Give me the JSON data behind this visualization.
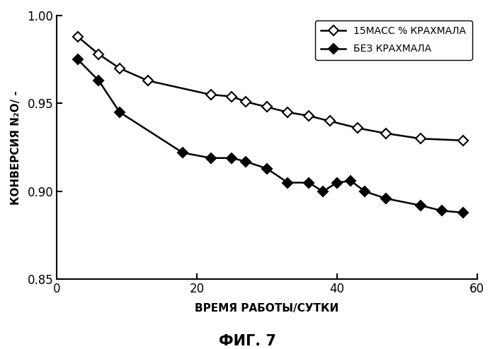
{
  "series1_x": [
    3,
    6,
    9,
    13,
    22,
    25,
    27,
    30,
    33,
    36,
    39,
    43,
    47,
    52,
    58
  ],
  "series1_y": [
    0.988,
    0.978,
    0.97,
    0.963,
    0.955,
    0.954,
    0.951,
    0.948,
    0.945,
    0.943,
    0.94,
    0.936,
    0.933,
    0.93,
    0.929
  ],
  "series2_x": [
    3,
    6,
    9,
    18,
    22,
    25,
    27,
    30,
    33,
    36,
    38,
    40,
    42,
    44,
    47,
    52,
    55,
    58
  ],
  "series2_y": [
    0.975,
    0.963,
    0.945,
    0.922,
    0.919,
    0.919,
    0.917,
    0.913,
    0.905,
    0.905,
    0.9,
    0.905,
    0.906,
    0.9,
    0.896,
    0.892,
    0.889,
    0.888
  ],
  "legend1_big": "15",
  "legend1_small": "МАСС",
  "legend1_big2": " %",
  "legend1_rest": " КРАХМАЛА",
  "legend2": "БЕЗ КРАХМАЛА",
  "ylabel_top": "КОНВЕРСИЯ N₂O/ -",
  "ylabel_konversiya": "КОНВЕРСИЯ",
  "ylabel_n2o": "N₂O/ -",
  "xlabel": "ВРЕМЯ РАБОТЫ/СУТКИ",
  "fig_title": "ФИГ. 7",
  "ylim": [
    0.85,
    1.0
  ],
  "xlim": [
    0,
    60
  ],
  "yticks": [
    0.85,
    0.9,
    0.95,
    1.0
  ],
  "xticks": [
    0,
    20,
    40,
    60
  ]
}
